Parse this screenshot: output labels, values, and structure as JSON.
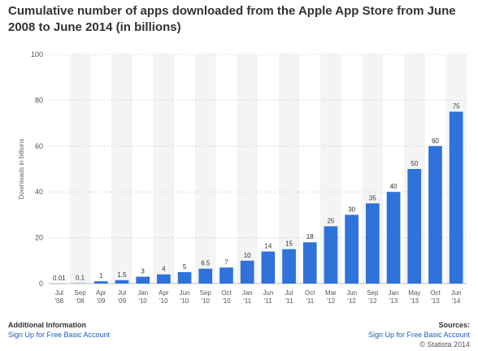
{
  "title": "Cumulative number of apps downloaded from the Apple App Store from June 2008 to June 2014 (in billions)",
  "footer": {
    "additional_info_heading": "Additional Information",
    "left_link": "Sign Up for Free Basic Account",
    "sources_heading": "Sources:",
    "right_link": "Sign Up for Free Basic Account",
    "copyright": "© Statista 2014"
  },
  "chart_data": {
    "type": "bar",
    "title": "Cumulative number of apps downloaded from the Apple App Store from June 2008 to June 2014 (in billions)",
    "ylabel": "Downloads in billions",
    "xlabel": "",
    "ylim": [
      0,
      100
    ],
    "yticks": [
      0,
      20,
      40,
      60,
      80,
      100
    ],
    "grid": true,
    "bar_color": "#2f72d9",
    "categories": [
      [
        "Jul",
        "'08"
      ],
      [
        "Sep",
        "'08"
      ],
      [
        "Apr",
        "'09"
      ],
      [
        "Jul",
        "'09"
      ],
      [
        "Jan",
        "'10"
      ],
      [
        "Apr",
        "'10"
      ],
      [
        "Jun",
        "'10"
      ],
      [
        "Sep",
        "'10"
      ],
      [
        "Oct",
        "'10"
      ],
      [
        "Jan",
        "'11"
      ],
      [
        "Jun",
        "'11"
      ],
      [
        "Jul",
        "'11"
      ],
      [
        "Oct",
        "'11"
      ],
      [
        "Mar",
        "'12"
      ],
      [
        "Jun",
        "'12"
      ],
      [
        "Sep",
        "'12"
      ],
      [
        "Jan",
        "'13"
      ],
      [
        "May",
        "'13"
      ],
      [
        "Oct",
        "'13"
      ],
      [
        "Jun",
        "'14"
      ]
    ],
    "values": [
      0.01,
      0.1,
      1,
      1.5,
      3,
      4,
      5,
      6.5,
      7,
      10,
      14,
      15,
      18,
      25,
      30,
      35,
      40,
      50,
      60,
      75
    ],
    "value_labels": [
      "0.01",
      "0.1",
      "1",
      "1.5",
      "3",
      "4",
      "5",
      "6.5",
      "7",
      "10",
      "14",
      "15",
      "18",
      "25",
      "30",
      "35",
      "40",
      "50",
      "60",
      "75"
    ]
  }
}
